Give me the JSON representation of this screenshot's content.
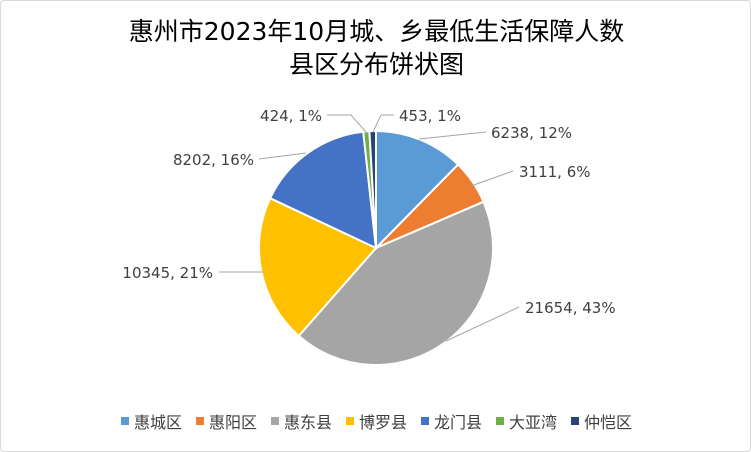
{
  "chart_data": {
    "type": "pie",
    "title": "惠州市2023年10月城、乡最低生活保障人数县区分布饼状图",
    "title_lines": [
      "惠州市2023年10月城、乡最低生活保障人数",
      "县区分布饼状图"
    ],
    "categories": [
      "惠城区",
      "惠阳区",
      "惠东县",
      "博罗县",
      "龙门县",
      "大亚湾",
      "仲恺区"
    ],
    "values": [
      6238,
      3111,
      21654,
      10345,
      8202,
      424,
      453
    ],
    "data_labels": [
      "6238, 12%",
      "3111, 6%",
      "21654, 43%",
      "10345, 21%",
      "8202, 16%",
      "424, 1%",
      "453, 1%"
    ],
    "colors": [
      "#5B9BD5",
      "#ED7D31",
      "#A5A5A5",
      "#FFC000",
      "#4472C4",
      "#70AD47",
      "#264478"
    ],
    "legend_position": "bottom"
  }
}
